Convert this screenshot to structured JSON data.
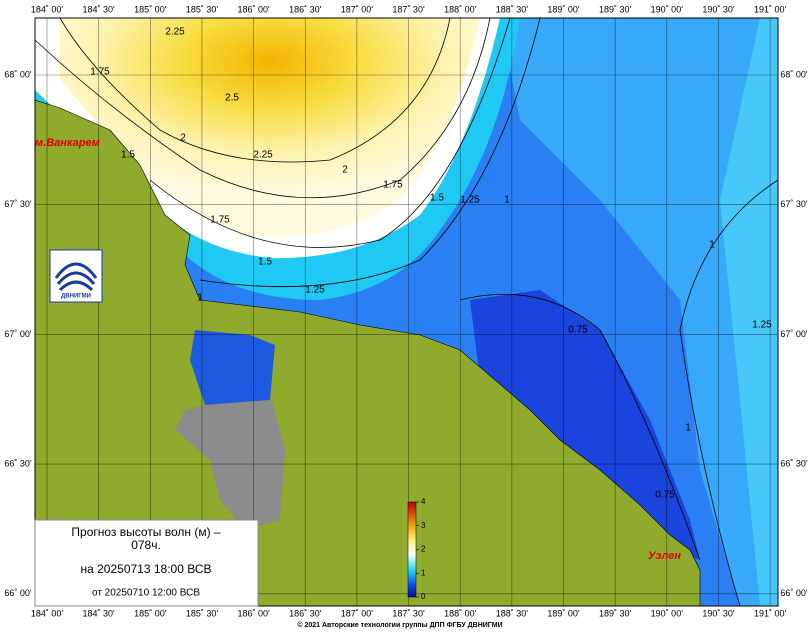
{
  "map": {
    "lon_labels": [
      "184˚ 00'",
      "184˚ 30'",
      "185˚ 00'",
      "185˚ 30'",
      "186˚ 00'",
      "186˚ 30'",
      "187˚ 00'",
      "187˚ 30'",
      "188˚ 00'",
      "188˚ 30'",
      "189˚ 00'",
      "189˚ 30'",
      "190˚ 00'",
      "190˚ 30'",
      "191˚ 00'"
    ],
    "lat_labels": [
      "68˚ 00'",
      "67˚ 30'",
      "67˚ 00'",
      "66˚ 30'",
      "66˚ 00'"
    ],
    "contour_labels": [
      "2.25",
      "1.75",
      "2.5",
      "2",
      "1.5",
      "2.25",
      "2",
      "1.75",
      "1.75",
      "1.5",
      "1.25",
      "1",
      "1.5",
      "1.25",
      "1",
      "1",
      "0.75",
      "1.25",
      "1",
      "0.75"
    ],
    "places": [
      "м.Ванкарем",
      "Уэлен"
    ],
    "logo": "ДВНИГМИ"
  },
  "legend": {
    "title_lines": [
      "Прогноз высоты волн (м) –",
      "078ч."
    ],
    "forecast_for": "на 20250713 18:00 ВСВ",
    "issued": "от 20250710 12:00 ВСВ"
  },
  "colorbar": {
    "range": [
      0,
      4
    ],
    "ticks": [
      0,
      1,
      2,
      3,
      4
    ]
  },
  "footer": "© 2021 Авторские технологии группы ДПП ФГБУ ДВНИГМИ"
}
